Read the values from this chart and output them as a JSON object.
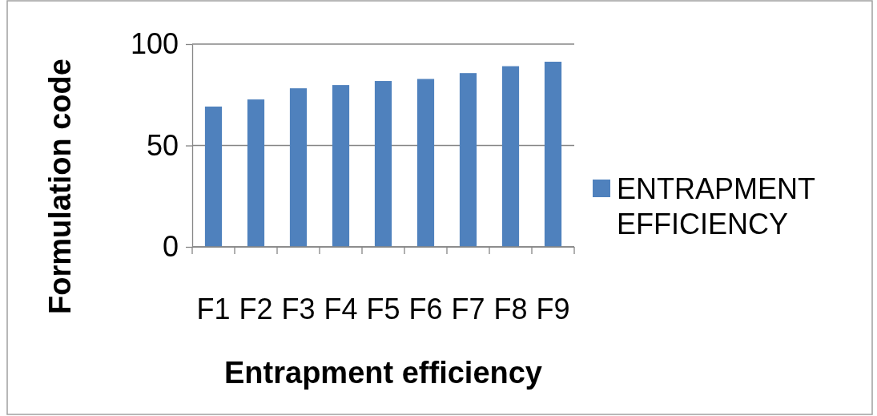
{
  "chart_data": {
    "type": "bar",
    "xlabel": "Entrapment efficiency",
    "ylabel": "Formulation code",
    "categories": [
      "F1",
      "F2",
      "F3",
      "F4",
      "F5",
      "F6",
      "F7",
      "F8",
      "F9"
    ],
    "series": [
      {
        "name": "ENTRAPMENT EFFICIENCY",
        "color": "#4f81bd",
        "values": [
          69.2,
          72.7,
          78.2,
          79.8,
          81.8,
          82.8,
          85.7,
          89.1,
          91.3
        ]
      }
    ],
    "ylim": [
      0,
      100
    ],
    "yticks": [
      0,
      50,
      100
    ],
    "grid": "y",
    "legend": "right"
  }
}
